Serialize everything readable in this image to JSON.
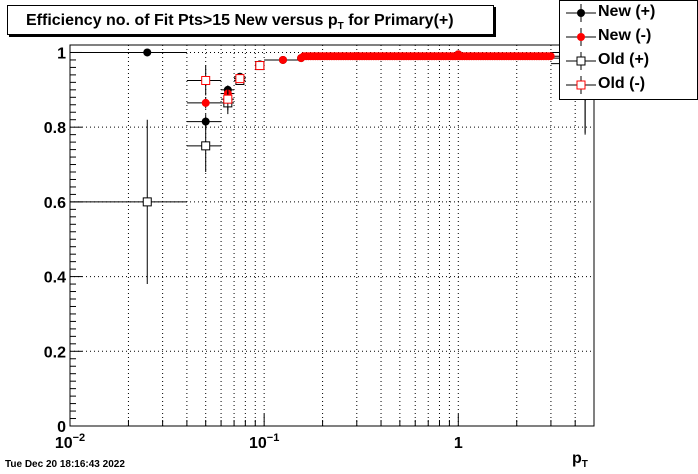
{
  "title": {
    "main": "Efficiency no. of Fit Pts>15 New versus p",
    "sub": "T",
    "tail": " for Primary(+)"
  },
  "timestamp": "Tue Dec 20 18:16:43 2022",
  "chart_data": {
    "type": "scatter",
    "xlabel": "p",
    "xlabel_sub": "T",
    "ylabel": "",
    "xscale": "log",
    "xlim": [
      0.01,
      5
    ],
    "ylim": [
      0,
      1.02
    ],
    "grid": true,
    "legend_position": "top-right",
    "x_ticks": [
      {
        "value": 0.01,
        "base": "10",
        "exp": "−2"
      },
      {
        "value": 0.1,
        "base": "10",
        "exp": "−1"
      },
      {
        "value": 1,
        "base": "1",
        "exp": ""
      }
    ],
    "y_ticks": [
      {
        "value": 0,
        "label": "0"
      },
      {
        "value": 0.2,
        "label": "0.2"
      },
      {
        "value": 0.4,
        "label": "0.4"
      },
      {
        "value": 0.6,
        "label": "0.6"
      },
      {
        "value": 0.8,
        "label": "0.8"
      },
      {
        "value": 1,
        "label": "1"
      }
    ],
    "series": [
      {
        "name": "New (+)",
        "color": "#000000",
        "marker": "filled-circle",
        "points": [
          {
            "x": 0.025,
            "y": 1.0,
            "xlo": 0.01,
            "xhi": 0.04,
            "err": 0.0
          },
          {
            "x": 0.05,
            "y": 0.815,
            "xlo": 0.04,
            "xhi": 0.06,
            "err": 0.02
          },
          {
            "x": 0.065,
            "y": 0.9,
            "xlo": 0.06,
            "xhi": 0.07,
            "err": 0.012
          },
          {
            "x": 0.075,
            "y": 0.935,
            "xlo": 0.07,
            "xhi": 0.08,
            "err": 0.008
          },
          {
            "x": 0.095,
            "y": 0.968,
            "xlo": 0.09,
            "xhi": 0.1,
            "err": 0.005
          },
          {
            "x": 0.125,
            "y": 0.98,
            "xlo": 0.1,
            "xhi": 0.15,
            "err": 0.004
          },
          {
            "x": 0.155,
            "y": 0.985,
            "xlo": 0.15,
            "xhi": 0.16,
            "err": 0.003
          },
          {
            "x": 0.3,
            "y": 0.99,
            "xlo": 0.16,
            "xhi": 0.5,
            "err": 0.002
          },
          {
            "x": 1.0,
            "y": 0.995,
            "xlo": 0.5,
            "xhi": 2.0,
            "err": 0.002
          },
          {
            "x": 3.5,
            "y": 1.0,
            "xlo": 3.0,
            "xhi": 4.0,
            "err": 0.01
          },
          {
            "x": 4.5,
            "y": 0.97,
            "xlo": 4.0,
            "xhi": 5.0,
            "err": 0.1
          }
        ]
      },
      {
        "name": "New (-)",
        "color": "#ff0000",
        "marker": "filled-circle",
        "points": [
          {
            "x": 0.05,
            "y": 0.865,
            "xlo": 0.04,
            "xhi": 0.06,
            "err": 0.015
          },
          {
            "x": 0.065,
            "y": 0.89,
            "xlo": 0.06,
            "xhi": 0.07,
            "err": 0.012
          },
          {
            "x": 0.075,
            "y": 0.93,
            "xlo": 0.07,
            "xhi": 0.08,
            "err": 0.008
          },
          {
            "x": 0.095,
            "y": 0.965,
            "xlo": 0.09,
            "xhi": 0.1,
            "err": 0.005
          },
          {
            "x": 0.125,
            "y": 0.98,
            "xlo": 0.1,
            "xhi": 0.15,
            "err": 0.004
          },
          {
            "x": 0.155,
            "y": 0.985,
            "xlo": 0.15,
            "xhi": 0.16,
            "err": 0.003
          },
          {
            "x": 0.3,
            "y": 0.99,
            "xlo": 0.16,
            "xhi": 0.5,
            "err": 0.002
          },
          {
            "x": 1.0,
            "y": 0.995,
            "xlo": 0.5,
            "xhi": 2.0,
            "err": 0.002
          },
          {
            "x": 3.5,
            "y": 0.99,
            "xlo": 3.0,
            "xhi": 4.0,
            "err": 0.01
          },
          {
            "x": 4.5,
            "y": 0.96,
            "xlo": 4.0,
            "xhi": 5.0,
            "err": 0.08
          }
        ]
      },
      {
        "name": "Old (+)",
        "color": "#000000",
        "marker": "open-square",
        "points": [
          {
            "x": 0.025,
            "y": 0.6,
            "xlo": 0.01,
            "xhi": 0.04,
            "err": 0.22
          },
          {
            "x": 0.05,
            "y": 0.75,
            "xlo": 0.04,
            "xhi": 0.06,
            "err": 0.07
          },
          {
            "x": 0.065,
            "y": 0.865,
            "xlo": 0.06,
            "xhi": 0.07,
            "err": 0.03
          },
          {
            "x": 0.075,
            "y": 0.925,
            "xlo": 0.07,
            "xhi": 0.08,
            "err": 0.01
          },
          {
            "x": 0.095,
            "y": 0.965,
            "xlo": 0.09,
            "xhi": 0.1,
            "err": 0.005
          },
          {
            "x": 3.5,
            "y": 0.985,
            "xlo": 3.0,
            "xhi": 4.0,
            "err": 0.01
          },
          {
            "x": 4.5,
            "y": 0.9,
            "xlo": 4.0,
            "xhi": 5.0,
            "err": 0.12
          }
        ]
      },
      {
        "name": "Old (-)",
        "color": "#ff0000",
        "marker": "open-square",
        "points": [
          {
            "x": 0.05,
            "y": 0.925,
            "xlo": 0.04,
            "xhi": 0.06,
            "err": 0.04
          },
          {
            "x": 0.065,
            "y": 0.875,
            "xlo": 0.06,
            "xhi": 0.07,
            "err": 0.03
          },
          {
            "x": 0.075,
            "y": 0.93,
            "xlo": 0.07,
            "xhi": 0.08,
            "err": 0.01
          },
          {
            "x": 0.095,
            "y": 0.965,
            "xlo": 0.09,
            "xhi": 0.1,
            "err": 0.005
          },
          {
            "x": 3.5,
            "y": 0.97,
            "xlo": 3.0,
            "xhi": 4.0,
            "err": 0.02
          },
          {
            "x": 4.5,
            "y": 0.885,
            "xlo": 4.0,
            "xhi": 5.0,
            "err": 0.1
          }
        ]
      }
    ]
  }
}
